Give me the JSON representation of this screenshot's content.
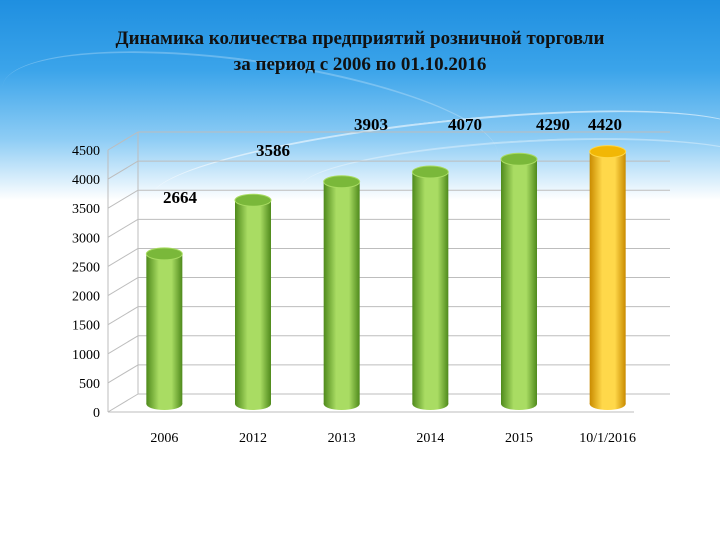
{
  "chart_data": {
    "type": "bar",
    "title_lines": [
      "Динамика количества предприятий розничной торговли",
      "за период с 2006  по 01.10.2016"
    ],
    "categories": [
      "2006",
      "2012",
      "2013",
      "2014",
      "2015",
      "10/1/2016"
    ],
    "values": [
      2664,
      3586,
      3903,
      4070,
      4290,
      4420
    ],
    "data_labels": [
      "2664",
      "3586",
      "3903",
      "4070",
      "4290",
      "4420"
    ],
    "ylim": [
      0,
      4500
    ],
    "yticks": [
      "0",
      "500",
      "1000",
      "1500",
      "2000",
      "2500",
      "3000",
      "3500",
      "4000",
      "4500"
    ],
    "grid": true,
    "colors": {
      "bar": "#7ab83a",
      "bar_dark": "#4f8a1c",
      "bar_light": "#a9dc63",
      "highlight_bar": "#f2b705",
      "highlight_bar_dark": "#c98b00",
      "highlight_bar_light": "#ffd84a",
      "grid": "#bdbdbd"
    },
    "highlight_index": 5
  }
}
